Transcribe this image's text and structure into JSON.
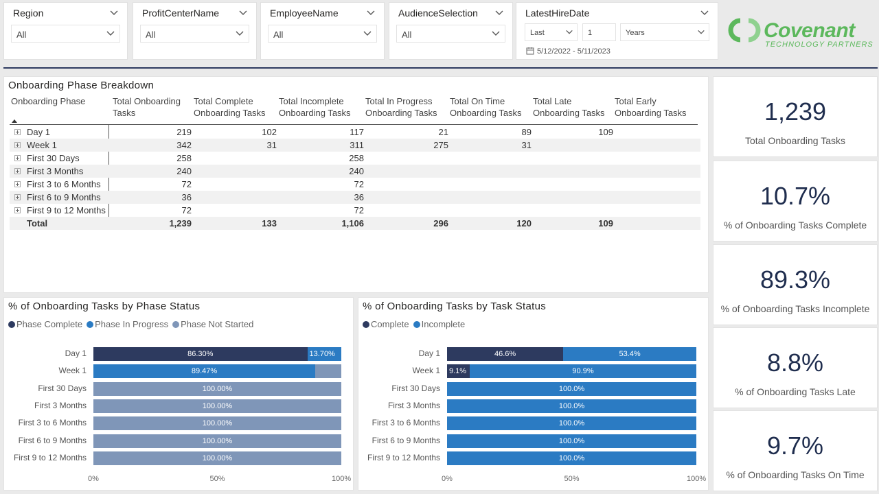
{
  "slicers": {
    "region": {
      "title": "Region",
      "value": "All"
    },
    "profit_center": {
      "title": "ProfitCenterName",
      "value": "All"
    },
    "employee": {
      "title": "EmployeeName",
      "value": "All"
    },
    "audience": {
      "title": "AudienceSelection",
      "value": "All"
    },
    "hire_date": {
      "title": "LatestHireDate",
      "relative": "Last",
      "count": "1",
      "unit": "Years",
      "range": "5/12/2022 - 5/11/2023"
    }
  },
  "logo": {
    "word": "Covenant",
    "sub": "TECHNOLOGY PARTNERS"
  },
  "colors": {
    "dark": "#2d3a5f",
    "blue": "#2b7bc3",
    "grey": "#7f96b8",
    "logo_green": "#5cb85c"
  },
  "matrix": {
    "title": "Onboarding Phase Breakdown",
    "headers": [
      "Onboarding Phase",
      "Total Onboarding Tasks",
      "Total Complete Onboarding Tasks",
      "Total Incomplete Onboarding Tasks",
      "Total In Progress Onboarding Tasks",
      "Total On Time Onboarding Tasks",
      "Total Late Onboarding Tasks",
      "Total Early Onboarding Tasks"
    ],
    "rows": [
      {
        "phase": "Day 1",
        "total": "219",
        "complete": "102",
        "incomplete": "117",
        "in_progress": "21",
        "on_time": "89",
        "late": "109",
        "early": ""
      },
      {
        "phase": "Week 1",
        "total": "342",
        "complete": "31",
        "incomplete": "311",
        "in_progress": "275",
        "on_time": "31",
        "late": "",
        "early": ""
      },
      {
        "phase": "First 30 Days",
        "total": "258",
        "complete": "",
        "incomplete": "258",
        "in_progress": "",
        "on_time": "",
        "late": "",
        "early": ""
      },
      {
        "phase": "First 3 Months",
        "total": "240",
        "complete": "",
        "incomplete": "240",
        "in_progress": "",
        "on_time": "",
        "late": "",
        "early": ""
      },
      {
        "phase": "First 3 to 6 Months",
        "total": "72",
        "complete": "",
        "incomplete": "72",
        "in_progress": "",
        "on_time": "",
        "late": "",
        "early": ""
      },
      {
        "phase": "First 6 to 9 Months",
        "total": "36",
        "complete": "",
        "incomplete": "36",
        "in_progress": "",
        "on_time": "",
        "late": "",
        "early": ""
      },
      {
        "phase": "First 9 to 12 Months",
        "total": "72",
        "complete": "",
        "incomplete": "72",
        "in_progress": "",
        "on_time": "",
        "late": "",
        "early": ""
      }
    ],
    "total": {
      "phase": "Total",
      "total": "1,239",
      "complete": "133",
      "incomplete": "1,106",
      "in_progress": "296",
      "on_time": "120",
      "late": "109",
      "early": ""
    }
  },
  "kpis": [
    {
      "value": "1,239",
      "label": "Total Onboarding Tasks"
    },
    {
      "value": "10.7%",
      "label": "% of Onboarding Tasks Complete"
    },
    {
      "value": "89.3%",
      "label": "% of Onboarding Tasks Incomplete"
    },
    {
      "value": "8.8%",
      "label": "% of Onboarding Tasks Late"
    },
    {
      "value": "9.7%",
      "label": "% of Onboarding Tasks On Time"
    }
  ],
  "chart_data": [
    {
      "type": "bar",
      "stacked": "100%",
      "orientation": "horizontal",
      "title": "% of Onboarding Tasks by Phase Status",
      "categories": [
        "Day 1",
        "Week 1",
        "First 30 Days",
        "First 3 Months",
        "First 3 to 6 Months",
        "First 6 to 9 Months",
        "First 9 to 12 Months"
      ],
      "series": [
        {
          "name": "Phase Complete",
          "color": "#2d3a5f",
          "values": [
            86.3,
            0,
            0,
            0,
            0,
            0,
            0
          ],
          "labels": [
            "86.30%",
            "",
            "",
            "",
            "",
            "",
            ""
          ]
        },
        {
          "name": "Phase In Progress",
          "color": "#2b7bc3",
          "values": [
            13.7,
            89.47,
            0,
            0,
            0,
            0,
            0
          ],
          "labels": [
            "13.70%",
            "89.47%",
            "",
            "",
            "",
            "",
            ""
          ]
        },
        {
          "name": "Phase Not Started",
          "color": "#7f96b8",
          "values": [
            0,
            10.53,
            100,
            100,
            100,
            100,
            100
          ],
          "labels": [
            "",
            "",
            "100.00%",
            "100.00%",
            "100.00%",
            "100.00%",
            "100.00%"
          ]
        }
      ],
      "xticks": [
        "0%",
        "50%",
        "100%"
      ],
      "xlim": [
        0,
        100
      ]
    },
    {
      "type": "bar",
      "stacked": "100%",
      "orientation": "horizontal",
      "title": "% of Onboarding Tasks by Task Status",
      "categories": [
        "Day 1",
        "Week 1",
        "First 30 Days",
        "First 3 Months",
        "First 3 to 6 Months",
        "First 6 to 9 Months",
        "First 9 to 12 Months"
      ],
      "series": [
        {
          "name": "Complete",
          "color": "#2d3a5f",
          "values": [
            46.6,
            9.1,
            0,
            0,
            0,
            0,
            0
          ],
          "labels": [
            "46.6%",
            "9.1%",
            "",
            "",
            "",
            "",
            ""
          ]
        },
        {
          "name": "Incomplete",
          "color": "#2b7bc3",
          "values": [
            53.4,
            90.9,
            100,
            100,
            100,
            100,
            100
          ],
          "labels": [
            "53.4%",
            "90.9%",
            "100.0%",
            "100.0%",
            "100.0%",
            "100.0%",
            "100.0%"
          ]
        }
      ],
      "xticks": [
        "0%",
        "50%",
        "100%"
      ],
      "xlim": [
        0,
        100
      ]
    }
  ]
}
